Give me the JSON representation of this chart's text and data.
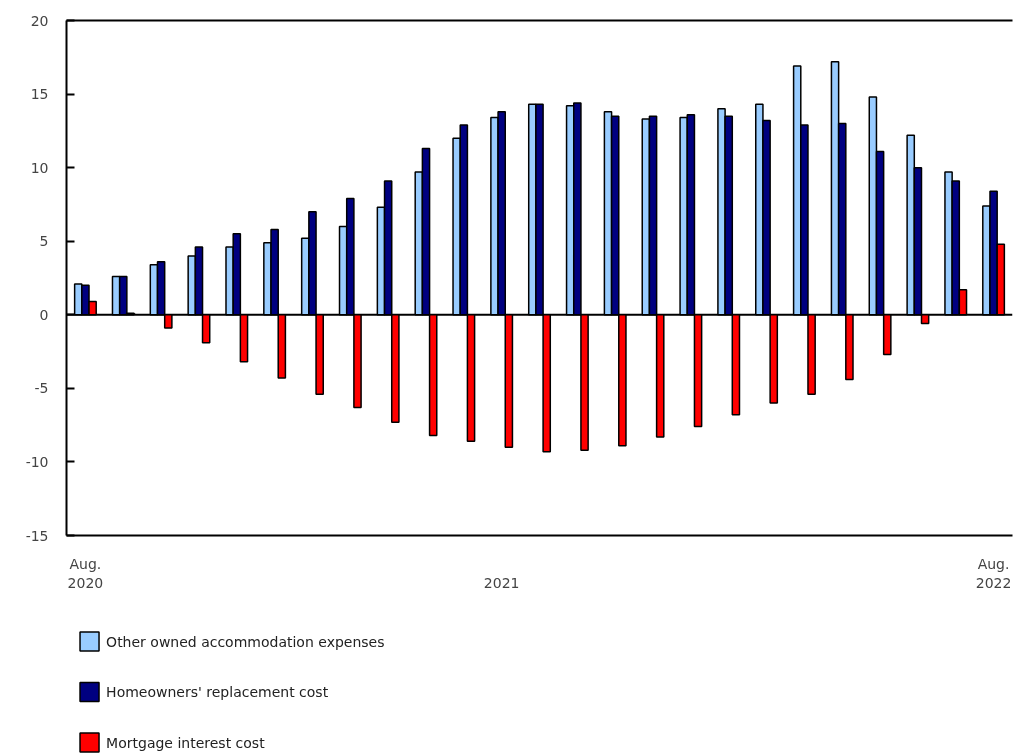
{
  "chart_data": {
    "type": "bar",
    "categories": [
      "Aug. 2020",
      null,
      null,
      null,
      null,
      null,
      null,
      null,
      null,
      null,
      null,
      "2021",
      null,
      null,
      null,
      null,
      null,
      null,
      null,
      null,
      null,
      null,
      null,
      null,
      "Aug. 2022"
    ],
    "series": [
      {
        "name": "Other owned accommodation expenses",
        "color": "#99ccff",
        "values": [
          2.1,
          2.6,
          3.4,
          4.0,
          4.6,
          4.9,
          5.2,
          6.0,
          7.3,
          9.7,
          12.0,
          13.4,
          14.3,
          14.2,
          13.8,
          13.3,
          13.4,
          14.0,
          14.3,
          16.9,
          17.2,
          14.8,
          12.2,
          9.7,
          7.4
        ]
      },
      {
        "name": "Homeowners' replacement cost",
        "color": "#000080",
        "values": [
          2.0,
          2.6,
          3.6,
          4.6,
          5.5,
          5.8,
          7.0,
          7.9,
          9.1,
          11.3,
          12.9,
          13.8,
          14.3,
          14.4,
          13.5,
          13.5,
          13.6,
          13.5,
          13.2,
          12.9,
          13.0,
          11.1,
          10.0,
          9.1,
          8.4
        ]
      },
      {
        "name": "Mortgage interest cost",
        "color": "#ff0000",
        "values": [
          0.9,
          0.1,
          -0.9,
          -1.9,
          -3.2,
          -4.3,
          -5.4,
          -6.3,
          -7.3,
          -8.2,
          -8.6,
          -9.0,
          -9.3,
          -9.2,
          -8.9,
          -8.3,
          -7.6,
          -6.8,
          -6.0,
          -5.4,
          -4.4,
          -2.7,
          -0.6,
          1.7,
          4.8
        ]
      }
    ],
    "ylim": [
      -15,
      20
    ],
    "yticks": [
      -15,
      -10,
      -5,
      0,
      5,
      10,
      15,
      20
    ],
    "ref_lines": [
      {
        "axis": "y",
        "value": 0
      }
    ],
    "grid": false,
    "legend": "bottom"
  }
}
